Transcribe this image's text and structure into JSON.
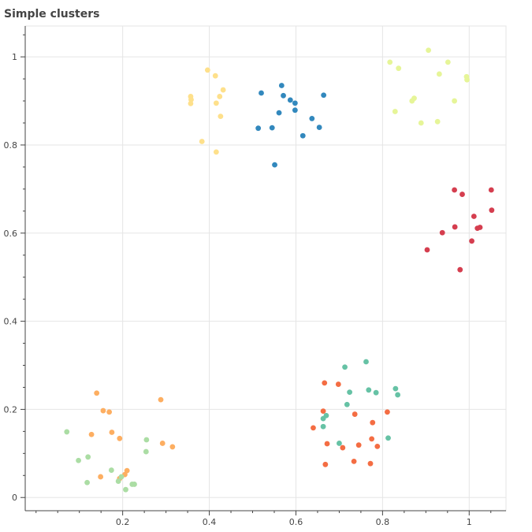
{
  "chart_data": {
    "type": "scatter",
    "title": "Simple clusters",
    "xlabel": "",
    "ylabel": "",
    "xlim": [
      -0.025,
      1.085
    ],
    "ylim": [
      -0.03,
      1.07
    ],
    "grid": true,
    "x_ticks": [
      "0.2",
      "0.4",
      "0.6",
      "0.8",
      "1"
    ],
    "x_tick_values": [
      0.2,
      0.4,
      0.6,
      0.8,
      1.0
    ],
    "y_ticks": [
      "0",
      "0.2",
      "0.4",
      "0.6",
      "0.8",
      "1"
    ],
    "y_tick_values": [
      0,
      0.2,
      0.4,
      0.6,
      0.8,
      1.0
    ],
    "series": [
      {
        "color": "#3288bd",
        "points": [
          [
            0.52,
            0.918
          ],
          [
            0.567,
            0.935
          ],
          [
            0.571,
            0.912
          ],
          [
            0.587,
            0.902
          ],
          [
            0.598,
            0.895
          ],
          [
            0.664,
            0.913
          ],
          [
            0.561,
            0.873
          ],
          [
            0.598,
            0.879
          ],
          [
            0.637,
            0.86
          ],
          [
            0.513,
            0.838
          ],
          [
            0.545,
            0.839
          ],
          [
            0.654,
            0.84
          ],
          [
            0.616,
            0.821
          ],
          [
            0.551,
            0.755
          ]
        ]
      },
      {
        "color": "#fee08b",
        "points": [
          [
            0.396,
            0.97
          ],
          [
            0.414,
            0.957
          ],
          [
            0.432,
            0.925
          ],
          [
            0.424,
            0.91
          ],
          [
            0.357,
            0.91
          ],
          [
            0.358,
            0.903
          ],
          [
            0.416,
            0.895
          ],
          [
            0.357,
            0.894
          ],
          [
            0.426,
            0.865
          ],
          [
            0.383,
            0.808
          ],
          [
            0.416,
            0.784
          ]
        ]
      },
      {
        "color": "#e6f598",
        "points": [
          [
            0.906,
            1.015
          ],
          [
            0.817,
            0.988
          ],
          [
            0.951,
            0.988
          ],
          [
            0.837,
            0.974
          ],
          [
            0.931,
            0.961
          ],
          [
            0.994,
            0.955
          ],
          [
            0.995,
            0.948
          ],
          [
            0.873,
            0.906
          ],
          [
            0.868,
            0.9
          ],
          [
            0.966,
            0.9
          ],
          [
            0.829,
            0.876
          ],
          [
            0.927,
            0.853
          ],
          [
            0.889,
            0.85
          ]
        ]
      },
      {
        "color": "#d53e4f",
        "points": [
          [
            0.966,
            0.698
          ],
          [
            1.051,
            0.698
          ],
          [
            0.984,
            0.688
          ],
          [
            1.052,
            0.652
          ],
          [
            1.011,
            0.638
          ],
          [
            0.967,
            0.614
          ],
          [
            1.025,
            0.613
          ],
          [
            1.019,
            0.611
          ],
          [
            0.938,
            0.601
          ],
          [
            1.006,
            0.582
          ],
          [
            0.903,
            0.562
          ],
          [
            0.979,
            0.517
          ]
        ]
      },
      {
        "color": "#66c2a5",
        "points": [
          [
            0.762,
            0.308
          ],
          [
            0.713,
            0.296
          ],
          [
            0.83,
            0.247
          ],
          [
            0.768,
            0.244
          ],
          [
            0.785,
            0.238
          ],
          [
            0.724,
            0.239
          ],
          [
            0.835,
            0.233
          ],
          [
            0.718,
            0.211
          ],
          [
            0.67,
            0.186
          ],
          [
            0.663,
            0.179
          ],
          [
            0.663,
            0.161
          ],
          [
            0.813,
            0.135
          ],
          [
            0.7,
            0.123
          ]
        ]
      },
      {
        "color": "#f46d43",
        "points": [
          [
            0.666,
            0.26
          ],
          [
            0.698,
            0.257
          ],
          [
            0.663,
            0.196
          ],
          [
            0.811,
            0.194
          ],
          [
            0.736,
            0.189
          ],
          [
            0.777,
            0.17
          ],
          [
            0.64,
            0.158
          ],
          [
            0.775,
            0.133
          ],
          [
            0.672,
            0.122
          ],
          [
            0.745,
            0.119
          ],
          [
            0.788,
            0.116
          ],
          [
            0.708,
            0.113
          ],
          [
            0.734,
            0.082
          ],
          [
            0.772,
            0.077
          ],
          [
            0.668,
            0.075
          ]
        ]
      },
      {
        "color": "#fdae61",
        "points": [
          [
            0.14,
            0.237
          ],
          [
            0.288,
            0.222
          ],
          [
            0.155,
            0.197
          ],
          [
            0.169,
            0.194
          ],
          [
            0.175,
            0.148
          ],
          [
            0.128,
            0.143
          ],
          [
            0.193,
            0.134
          ],
          [
            0.292,
            0.123
          ],
          [
            0.315,
            0.115
          ],
          [
            0.21,
            0.061
          ],
          [
            0.205,
            0.052
          ],
          [
            0.149,
            0.047
          ],
          [
            0.193,
            0.043
          ]
        ]
      },
      {
        "color": "#abdda4",
        "points": [
          [
            0.071,
            0.149
          ],
          [
            0.255,
            0.131
          ],
          [
            0.12,
            0.092
          ],
          [
            0.098,
            0.084
          ],
          [
            0.254,
            0.104
          ],
          [
            0.174,
            0.062
          ],
          [
            0.197,
            0.047
          ],
          [
            0.19,
            0.037
          ],
          [
            0.118,
            0.034
          ],
          [
            0.222,
            0.03
          ],
          [
            0.227,
            0.03
          ],
          [
            0.207,
            0.018
          ]
        ]
      }
    ]
  }
}
